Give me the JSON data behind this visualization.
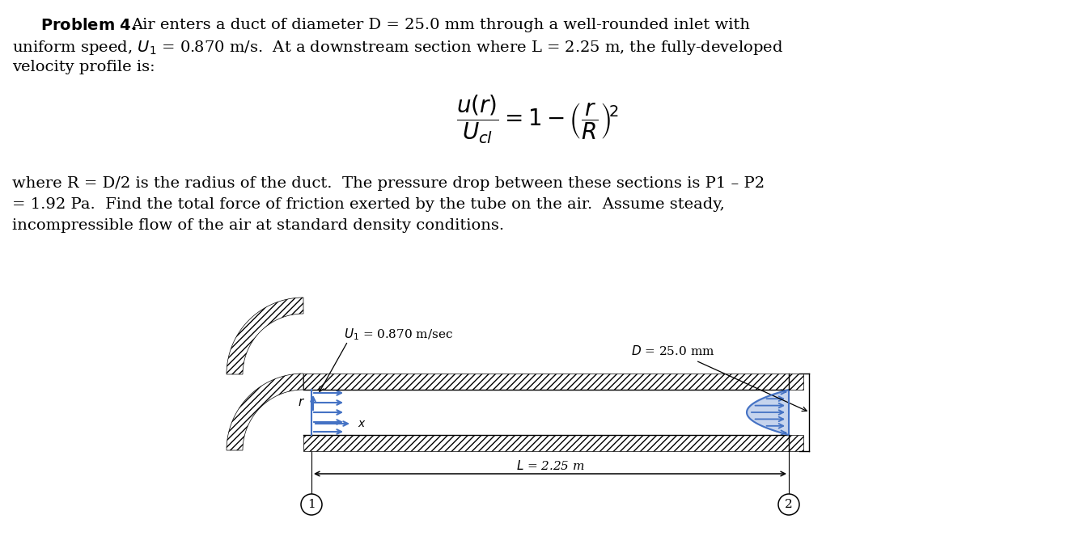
{
  "bg_color": "#ffffff",
  "arrow_color": "#4472c4",
  "line1_bold": "Problem 4.",
  "line1_rest": " Air enters a duct of diameter D = 25.0 mm through a well-rounded inlet with",
  "line2": "uniform speed, $U_1$ = 0.870 m/s.  At a downstream section where L = 2.25 m, the fully-developed",
  "line3": "velocity profile is:",
  "body1": "where R = D/2 is the radius of the duct.  The pressure drop between these sections is P1 – P2",
  "body2": "= 1.92 Pa.  Find the total force of friction exerted by the tube on the air.  Assume steady,",
  "body3": "incompressible flow of the air at standard density conditions.",
  "diag_U1": "$U_1$ = 0.870 m/sec",
  "diag_D": "$D$ = 25.0 mm",
  "diag_L": "$L$ = 2.25 m",
  "diag_r": "$r$",
  "diag_x": "$x$",
  "text_fontsize": 14,
  "eq_fontsize": 20
}
